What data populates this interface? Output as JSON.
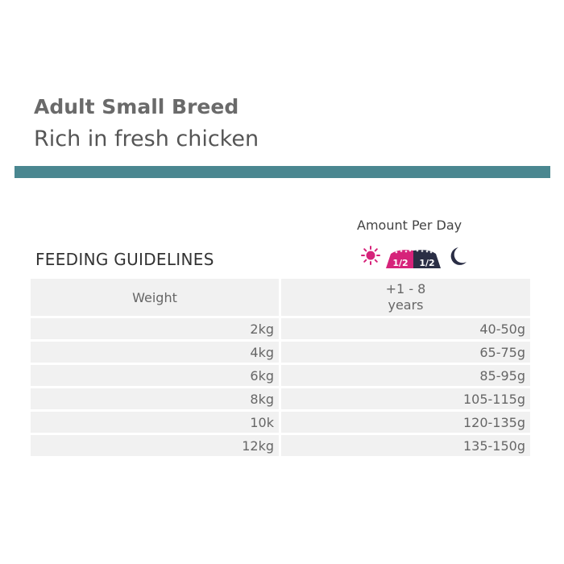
{
  "product": {
    "title": "Adult Small Breed",
    "subtitle": "Rich in fresh chicken"
  },
  "colors": {
    "accent": "#4a8790",
    "morning": "#d6237a",
    "evening": "#2a2e45"
  },
  "feeding": {
    "amount_label": "Amount Per Day",
    "morning_portion": "1/2",
    "evening_portion": "1/2",
    "icons": [
      "sun-icon",
      "food-bowl-icon",
      "moon-icon"
    ],
    "section_title": "FEEDING GUIDELINES",
    "table": {
      "header_weight": "Weight",
      "header_age_line1": "+1 - 8",
      "header_age_line2": "years",
      "rows": [
        {
          "weight": "2kg",
          "amount": "40-50g"
        },
        {
          "weight": "4kg",
          "amount": "65-75g"
        },
        {
          "weight": "6kg",
          "amount": "85-95g"
        },
        {
          "weight": "8kg",
          "amount": "105-115g"
        },
        {
          "weight": "10k",
          "amount": "120-135g"
        },
        {
          "weight": "12kg",
          "amount": "135-150g"
        }
      ]
    }
  }
}
